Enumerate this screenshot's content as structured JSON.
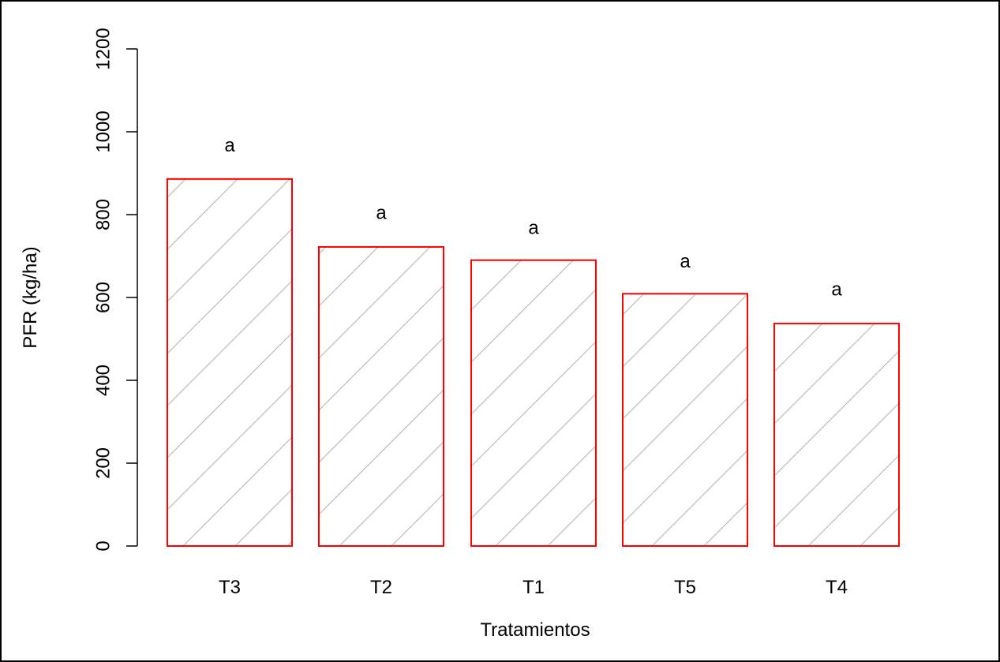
{
  "chart_data": {
    "type": "bar",
    "categories": [
      "T3",
      "T2",
      "T1",
      "T5",
      "T4"
    ],
    "values": [
      886,
      722,
      690,
      609,
      537
    ],
    "annotations": [
      "a",
      "a",
      "a",
      "a",
      "a"
    ],
    "annotation_values": [
      968,
      806,
      769,
      688,
      621
    ],
    "title": "",
    "xlabel": "Tratamientos",
    "ylabel": "PFR (kg/ha)",
    "ylim": [
      0,
      1200
    ],
    "yticks": [
      0,
      200,
      400,
      600,
      800,
      1000,
      1200
    ],
    "grid": false,
    "legend": "none",
    "bar_border_color": "#ff0000",
    "bar_hatch_color": "#bebebe",
    "bar_fill": "diagonal-hatch"
  }
}
